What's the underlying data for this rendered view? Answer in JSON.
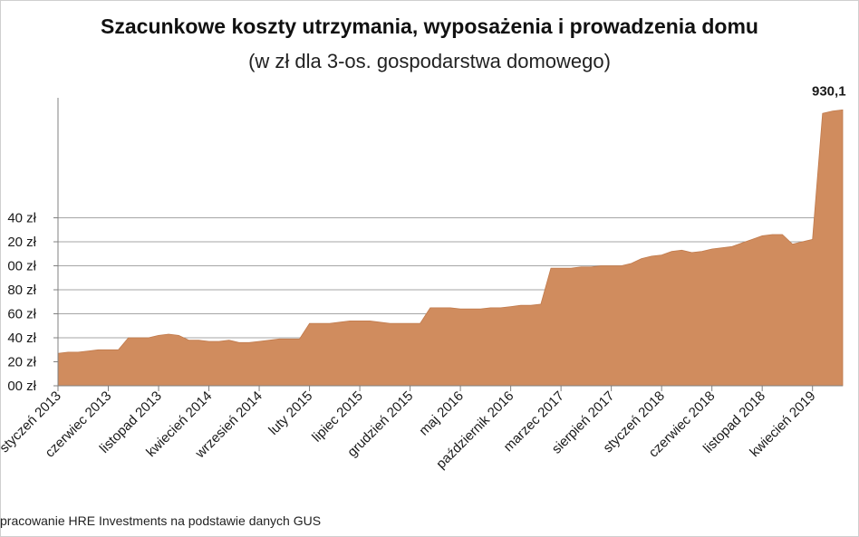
{
  "chart_data": {
    "type": "area",
    "title": "Szacunkowe koszty utrzymania, wyposażenia i prowadzenia domu",
    "subtitle": "(w zł dla 3-os. gospodarstwa domowego)",
    "source": "pracowanie HRE Investments na podstawie danych GUS",
    "last_label": "930,1",
    "color": "#D08C5E",
    "grid": true,
    "ylim": [
      700,
      940
    ],
    "y_ticks": [
      {
        "value": 700,
        "label": "00 zł"
      },
      {
        "value": 720,
        "label": "20 zł"
      },
      {
        "value": 740,
        "label": "40 zł"
      },
      {
        "value": 760,
        "label": "60 zł"
      },
      {
        "value": 780,
        "label": "80 zł"
      },
      {
        "value": 800,
        "label": "00 zł"
      },
      {
        "value": 820,
        "label": "20 zł"
      },
      {
        "value": 840,
        "label": "40 zł"
      }
    ],
    "x_tick_labels": [
      {
        "index": 0,
        "label": "styczeń 2013"
      },
      {
        "index": 5,
        "label": "czerwiec 2013"
      },
      {
        "index": 10,
        "label": "listopad 2013"
      },
      {
        "index": 15,
        "label": "kwiecień 2014"
      },
      {
        "index": 20,
        "label": "wrzesień 2014"
      },
      {
        "index": 25,
        "label": "luty 2015"
      },
      {
        "index": 30,
        "label": "lipiec 2015"
      },
      {
        "index": 35,
        "label": "grudzień 2015"
      },
      {
        "index": 40,
        "label": "maj 2016"
      },
      {
        "index": 45,
        "label": "październik 2016"
      },
      {
        "index": 50,
        "label": "marzec 2017"
      },
      {
        "index": 55,
        "label": "sierpień 2017"
      },
      {
        "index": 60,
        "label": "styczeń 2018"
      },
      {
        "index": 65,
        "label": "czerwiec 2018"
      },
      {
        "index": 70,
        "label": "listopad 2018"
      },
      {
        "index": 75,
        "label": "kwiecień 2019"
      }
    ],
    "values": [
      727,
      728,
      728,
      729,
      730,
      730,
      730,
      740,
      740,
      740,
      742,
      743,
      742,
      738,
      738,
      737,
      737,
      738,
      736,
      736,
      737,
      738,
      739,
      739,
      739,
      752,
      752,
      752,
      753,
      754,
      754,
      754,
      753,
      752,
      752,
      752,
      752,
      765,
      765,
      765,
      764,
      764,
      764,
      765,
      765,
      766,
      767,
      767,
      768,
      798,
      798,
      798,
      799,
      799,
      800,
      800,
      800,
      802,
      806,
      808,
      809,
      812,
      813,
      811,
      812,
      814,
      815,
      816,
      819,
      822,
      825,
      826,
      826,
      818,
      820,
      822,
      927,
      929,
      930
    ]
  }
}
